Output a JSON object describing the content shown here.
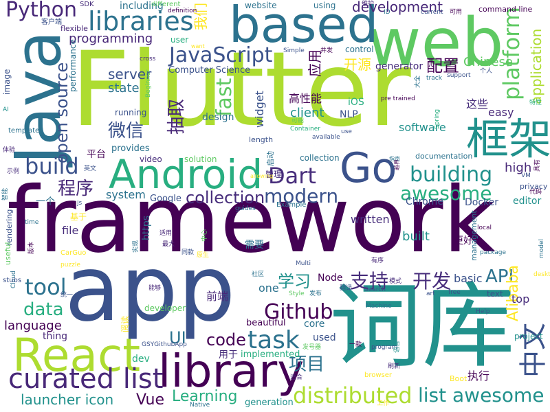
{
  "words": [
    {
      "text": "Flutter",
      "color": "#addc30",
      "rot": 0
    },
    {
      "text": "framework",
      "color": "#440154",
      "rot": 0
    },
    {
      "text": "app",
      "color": "#3b528b",
      "rot": 0
    },
    {
      "text": "词库",
      "color": "#21918c",
      "rot": 0
    },
    {
      "text": "web",
      "color": "#5ec962",
      "rot": 0
    },
    {
      "text": "based",
      "color": "#2c728e",
      "rot": 0
    },
    {
      "text": "Java",
      "color": "#2c728e",
      "rot": -90
    },
    {
      "text": "React",
      "color": "#addc30",
      "rot": 0
    },
    {
      "text": "Android",
      "color": "#28ae80",
      "rot": 0
    },
    {
      "text": "Go",
      "color": "#3b528b",
      "rot": 0
    },
    {
      "text": "library",
      "color": "#440154",
      "rot": 0
    },
    {
      "text": "框架",
      "color": "#21918c",
      "rot": 0
    },
    {
      "text": "curated list",
      "color": "#482878",
      "rot": 0
    },
    {
      "text": "libraries",
      "color": "#2c728e",
      "rot": 0
    },
    {
      "text": "JavaScript",
      "color": "#3b528b",
      "rot": 0
    },
    {
      "text": "platform",
      "color": "#5ec962",
      "rot": -90
    },
    {
      "text": "Python",
      "color": "#482878",
      "rot": 0
    },
    {
      "text": "distributed",
      "color": "#addc30",
      "rot": 0
    },
    {
      "text": "list awesome",
      "color": "#21918c",
      "rot": 0
    },
    {
      "text": "task",
      "color": "#2c728e",
      "rot": 0
    },
    {
      "text": "building",
      "color": "#21918c",
      "rot": 0
    },
    {
      "text": "build",
      "color": "#3b528b",
      "rot": 0
    },
    {
      "text": "open source",
      "color": "#3b528b",
      "rot": -90
    },
    {
      "text": "fast",
      "color": "#5ec962",
      "rot": -90
    },
    {
      "text": "awesome",
      "color": "#28ae80",
      "rot": 0
    },
    {
      "text": "Dart",
      "color": "#472d7b",
      "rot": 0
    },
    {
      "text": "modern",
      "color": "#3b528b",
      "rot": 0
    },
    {
      "text": "Github",
      "color": "#440154",
      "rot": 0
    },
    {
      "text": "中文",
      "color": "#3b528b",
      "rot": -90
    },
    {
      "text": "collection",
      "color": "#472d7b",
      "rot": 0
    },
    {
      "text": "tool",
      "color": "#2c728e",
      "rot": 0
    },
    {
      "text": "data",
      "color": "#28ae80",
      "rot": 0
    },
    {
      "text": "code",
      "color": "#440154",
      "rot": 0
    },
    {
      "text": "API",
      "color": "#2c728e",
      "rot": 0
    },
    {
      "text": "程序",
      "color": "#482878",
      "rot": 0
    },
    {
      "text": "微信",
      "color": "#3b528b",
      "rot": 0
    },
    {
      "text": "项目",
      "color": "#2c728e",
      "rot": 0
    },
    {
      "text": "支持",
      "color": "#472d7b",
      "rot": 0
    },
    {
      "text": "开发",
      "color": "#472d7b",
      "rot": 0
    },
    {
      "text": "学习",
      "color": "#21918c",
      "rot": 0
    },
    {
      "text": "Learning",
      "color": "#28ae80",
      "rot": 0
    },
    {
      "text": "launcher icon",
      "color": "#21918c",
      "rot": 0
    },
    {
      "text": "Vue",
      "color": "#440154",
      "rot": 0
    },
    {
      "text": "UI",
      "color": "#2c728e",
      "rot": 0
    },
    {
      "text": "language",
      "color": "#440154",
      "rot": 0
    },
    {
      "text": "server",
      "color": "#3b528b",
      "rot": 0
    },
    {
      "text": "state",
      "color": "#2c728e",
      "rot": 0
    },
    {
      "text": "development",
      "color": "#482878",
      "rot": 0
    },
    {
      "text": "programming",
      "color": "#482878",
      "rot": 0
    },
    {
      "text": "application",
      "color": "#addc30",
      "rot": -90
    },
    {
      "text": "Alibaba",
      "color": "#fde725",
      "rot": -90
    },
    {
      "text": "抽取",
      "color": "#482878",
      "rot": -90
    },
    {
      "text": "应用",
      "color": "#440154",
      "rot": -90
    },
    {
      "text": "我们",
      "color": "#fde725",
      "rot": -90
    },
    {
      "text": "配置",
      "color": "#440154",
      "rot": 0
    },
    {
      "text": "开源",
      "color": "#fde725",
      "rot": 0
    },
    {
      "text": "written",
      "color": "#472d7b",
      "rot": 0
    },
    {
      "text": "system",
      "color": "#2c728e",
      "rot": 0
    },
    {
      "text": "high",
      "color": "#482878",
      "rot": 0
    },
    {
      "text": "Chinese",
      "color": "#5ec962",
      "rot": 0
    },
    {
      "text": "client",
      "color": "#21918c",
      "rot": 0
    },
    {
      "text": "software",
      "color": "#21918c",
      "rot": 0
    },
    {
      "text": "generator",
      "color": "#472d7b",
      "rot": 0
    },
    {
      "text": "Computer Science",
      "color": "#3b528b",
      "rot": 0
    },
    {
      "text": "widget",
      "color": "#3b528b",
      "rot": -90
    },
    {
      "text": "design",
      "color": "#2c728e",
      "rot": 0
    },
    {
      "text": "NLP",
      "color": "#3b528b",
      "rot": 0
    },
    {
      "text": "iOS",
      "color": "#28ae80",
      "rot": 0
    },
    {
      "text": "easy",
      "color": "#482878",
      "rot": 0
    },
    {
      "text": "这些",
      "color": "#472d7b",
      "rot": 0
    },
    {
      "text": "高性能",
      "color": "#440154",
      "rot": 0
    },
    {
      "text": "平台",
      "color": "#440154",
      "rot": 0
    },
    {
      "text": "editor",
      "color": "#21918c",
      "rot": 0
    },
    {
      "text": "top",
      "color": "#472d7b",
      "rot": 0
    },
    {
      "text": "basic",
      "color": "#3b528b",
      "rot": 0
    },
    {
      "text": "built",
      "color": "#21918c",
      "rot": 0
    },
    {
      "text": "更好",
      "color": "#440154",
      "rot": 0
    },
    {
      "text": "one",
      "color": "#2c728e",
      "rot": 0
    },
    {
      "text": "Node",
      "color": "#440154",
      "rot": 0
    },
    {
      "text": "前端",
      "color": "#482878",
      "rot": 0
    },
    {
      "text": "Docker",
      "color": "#3b528b",
      "rot": 0
    },
    {
      "text": "Chrome",
      "color": "#3b528b",
      "rot": 0
    },
    {
      "text": "Google",
      "color": "#3b528b",
      "rot": 0
    },
    {
      "text": "https",
      "color": "#2c728e",
      "rot": -90
    },
    {
      "text": "file",
      "color": "#472d7b",
      "rot": 0
    },
    {
      "text": "一个",
      "color": "#2c728e",
      "rot": 0
    },
    {
      "text": "基于",
      "color": "#fde725",
      "rot": 0
    },
    {
      "text": "用于",
      "color": "#472d7b",
      "rot": 0
    },
    {
      "text": "执行",
      "color": "#440154",
      "rot": 0
    },
    {
      "text": "需要",
      "color": "#2c728e",
      "rot": 0
    },
    {
      "text": "管理",
      "color": "#472d7b",
      "rot": 0
    },
    {
      "text": "used",
      "color": "#3b528b",
      "rot": 0
    },
    {
      "text": "core",
      "color": "#2c728e",
      "rot": 0
    },
    {
      "text": "dev",
      "color": "#28ae80",
      "rot": 0
    },
    {
      "text": "thing",
      "color": "#482878",
      "rot": 0
    },
    {
      "text": "implemented",
      "color": "#28ae80",
      "rot": 0
    },
    {
      "text": "generation",
      "color": "#21918c",
      "rot": 0
    },
    {
      "text": "beautiful",
      "color": "#440154",
      "rot": 0
    },
    {
      "text": "developer",
      "color": "#5ec962",
      "rot": 0
    },
    {
      "text": "video",
      "color": "#472d7b",
      "rot": 0
    },
    {
      "text": "solution",
      "color": "#5ec962",
      "rot": 0
    },
    {
      "text": "provides",
      "color": "#2c728e",
      "rot": 0
    },
    {
      "text": "running",
      "color": "#3b528b",
      "rot": 0
    },
    {
      "text": "including",
      "color": "#2c728e",
      "rot": 0
    },
    {
      "text": "using",
      "color": "#2c728e",
      "rot": 0
    },
    {
      "text": "website",
      "color": "#2c728e",
      "rot": 0
    },
    {
      "text": "command line",
      "color": "#440154",
      "rot": 0
    },
    {
      "text": "image",
      "color": "#3b528b",
      "rot": 0
    },
    {
      "text": "performance",
      "color": "#2c728e",
      "rot": -90
    },
    {
      "text": "rendering",
      "color": "#3b528b",
      "rot": -90
    },
    {
      "text": "useful",
      "color": "#5ec962",
      "rot": -90
    },
    {
      "text": "collection",
      "color": "#2c728e",
      "rot": -90
    },
    {
      "text": "Example",
      "color": "#2c728e",
      "rot": 0
    },
    {
      "text": "documentation",
      "color": "#2c728e",
      "rot": 0
    },
    {
      "text": "management",
      "color": "#2c728e",
      "rot": 0
    },
    {
      "text": "text",
      "color": "#3b528b",
      "rot": -90
    },
    {
      "text": "project",
      "color": "#21918c",
      "rot": 0
    },
    {
      "text": "control",
      "color": "#2c728e",
      "rot": 0
    },
    {
      "text": "user",
      "color": "#28ae80",
      "rot": 0
    },
    {
      "text": "template",
      "color": "#2c728e",
      "rot": 0
    },
    {
      "text": "flexible",
      "color": "#482878",
      "rot": 0
    },
    {
      "text": "客户端",
      "color": "#3b528b",
      "rot": 0
    },
    {
      "text": "SDK",
      "color": "#472d7b",
      "rot": 0
    },
    {
      "text": "different",
      "color": "#5ec962",
      "rot": 0
    },
    {
      "text": "definition",
      "color": "#440154",
      "rot": 0
    },
    {
      "text": "维护",
      "color": "#482878",
      "rot": 0
    },
    {
      "text": "ID",
      "color": "#2c728e",
      "rot": 0
    },
    {
      "text": "current",
      "color": "#3b528b",
      "rot": 0
    },
    {
      "text": "可用",
      "color": "#440154",
      "rot": 0
    },
    {
      "text": "want",
      "color": "#fde725",
      "rot": 0
    },
    {
      "text": "Simple",
      "color": "#3b528b",
      "rot": 0
    },
    {
      "text": "并发",
      "color": "#440154",
      "rot": 0
    },
    {
      "text": "cross",
      "color": "#472d7b",
      "rot": 0
    },
    {
      "text": "个人",
      "color": "#3b528b",
      "rot": 0
    },
    {
      "text": "support",
      "color": "#3b528b",
      "rot": 0
    },
    {
      "text": "track",
      "color": "#2c728e",
      "rot": 0
    },
    {
      "text": "特性",
      "color": "#28ae80",
      "rot": 0
    },
    {
      "text": "大全",
      "color": "#2c728e",
      "rot": 0
    },
    {
      "text": "Spring",
      "color": "#28ae80",
      "rot": -90
    },
    {
      "text": "pre trained",
      "color": "#440154",
      "rot": -90
    },
    {
      "text": "可能",
      "color": "#5ec962",
      "rot": 0
    },
    {
      "text": "Container",
      "color": "#28ae80",
      "rot": 0
    },
    {
      "text": "available",
      "color": "#3b528b",
      "rot": 0
    },
    {
      "text": "use",
      "color": "#3b528b",
      "rot": 0
    },
    {
      "text": "length",
      "color": "#3b528b",
      "rot": 0
    },
    {
      "text": "启动",
      "color": "#2c728e",
      "rot": 0
    },
    {
      "text": "代码",
      "color": "#440154",
      "rot": -90
    },
    {
      "text": "指南",
      "color": "#2c728e",
      "rot": 0
    },
    {
      "text": "越界",
      "color": "#440154",
      "rot": 0
    },
    {
      "text": "VM",
      "color": "#3b528b",
      "rot": -90
    },
    {
      "text": "privacy",
      "color": "#3b528b",
      "rot": 0
    },
    {
      "text": "具有",
      "color": "#440154",
      "rot": 0
    },
    {
      "text": "AI",
      "color": "#21918c",
      "rot": -90
    },
    {
      "text": "体验",
      "color": "#482878",
      "rot": 0
    },
    {
      "text": "示例",
      "color": "#472d7b",
      "rot": 0
    },
    {
      "text": "智能",
      "color": "#2c728e",
      "rot": 0
    },
    {
      "text": "英文",
      "color": "#3b528b",
      "rot": -90
    },
    {
      "text": "allowing",
      "color": "#fde725",
      "rot": 0
    },
    {
      "text": "js",
      "color": "#3b528b",
      "rot": 0
    },
    {
      "text": "guides",
      "color": "#2c728e",
      "rot": 0
    },
    {
      "text": "time",
      "color": "#2c728e",
      "rot": 0
    },
    {
      "text": "适用",
      "color": "#482878",
      "rot": 0
    },
    {
      "text": "中心",
      "color": "#5ec962",
      "rot": 0
    },
    {
      "text": "最大",
      "color": "#482878",
      "rot": -90
    },
    {
      "text": "同款",
      "color": "#3b528b",
      "rot": 0
    },
    {
      "text": "原生",
      "color": "#fde725",
      "rot": 0
    },
    {
      "text": "实现",
      "color": "#2c728e",
      "rot": 0
    },
    {
      "text": "版本",
      "color": "#440154",
      "rot": -90
    },
    {
      "text": "CarGuo",
      "color": "#fde725",
      "rot": -90
    },
    {
      "text": "puzzle",
      "color": "#fde725",
      "rot": 0
    },
    {
      "text": "Multi",
      "color": "#3b528b",
      "rot": 0
    },
    {
      "text": "社区",
      "color": "#2c728e",
      "rot": 0
    },
    {
      "text": "Cloud",
      "color": "#2c728e",
      "rot": 0
    },
    {
      "text": "stubs",
      "color": "#3b528b",
      "rot": -90
    },
    {
      "text": "统一",
      "color": "#3b528b",
      "rot": 0
    },
    {
      "text": "能够",
      "color": "#482878",
      "rot": 0
    },
    {
      "text": "Style",
      "color": "#5ec962",
      "rot": 0
    },
    {
      "text": "发布",
      "color": "#2c728e",
      "rot": 0
    },
    {
      "text": "模式",
      "color": "#472d7b",
      "rot": 0
    },
    {
      "text": "翻译",
      "color": "#3b528b",
      "rot": 0
    },
    {
      "text": "Search",
      "color": "#3b528b",
      "rot": 0
    },
    {
      "text": "Machine",
      "color": "#2c728e",
      "rot": 0
    },
    {
      "text": "art",
      "color": "#3b528b",
      "rot": 0
    },
    {
      "text": "free",
      "color": "#3b528b",
      "rot": 0
    },
    {
      "text": "Help",
      "color": "#3b528b",
      "rot": 0
    },
    {
      "text": "desktop",
      "color": "#fde725",
      "rot": 0
    },
    {
      "text": "local",
      "color": "#440154",
      "rot": 0
    },
    {
      "text": "model",
      "color": "#2c728e",
      "rot": 0
    },
    {
      "text": "package",
      "color": "#2c728e",
      "rot": -90
    },
    {
      "text": "有序",
      "color": "#482878",
      "rot": 0
    },
    {
      "text": "阅读",
      "color": "#fde725",
      "rot": 0
    },
    {
      "text": "一款",
      "color": "#440154",
      "rot": -90
    },
    {
      "text": "GSYGithubApp",
      "color": "#3b528b",
      "rot": 0
    },
    {
      "text": "发号器",
      "color": "#5ec962",
      "rot": 0
    },
    {
      "text": "program",
      "color": "#3b528b",
      "rot": 0
    },
    {
      "text": "语言",
      "color": "#21918c",
      "rot": 0
    },
    {
      "text": "适合",
      "color": "#472d7b",
      "rot": -90
    },
    {
      "text": "browser",
      "color": "#fde725",
      "rot": 0
    },
    {
      "text": "刷新",
      "color": "#472d7b",
      "rot": 0
    },
    {
      "text": "Boot",
      "color": "#fde725",
      "rot": 0
    },
    {
      "text": "工作",
      "color": "#fde725",
      "rot": 0
    },
    {
      "text": "Native",
      "color": "#2c728e",
      "rot": 0
    },
    {
      "text": "Beginner",
      "color": "#5ec962",
      "rot": 0
    },
    {
      "text": "工具",
      "color": "#3b528b",
      "rot": -90
    }
  ]
}
